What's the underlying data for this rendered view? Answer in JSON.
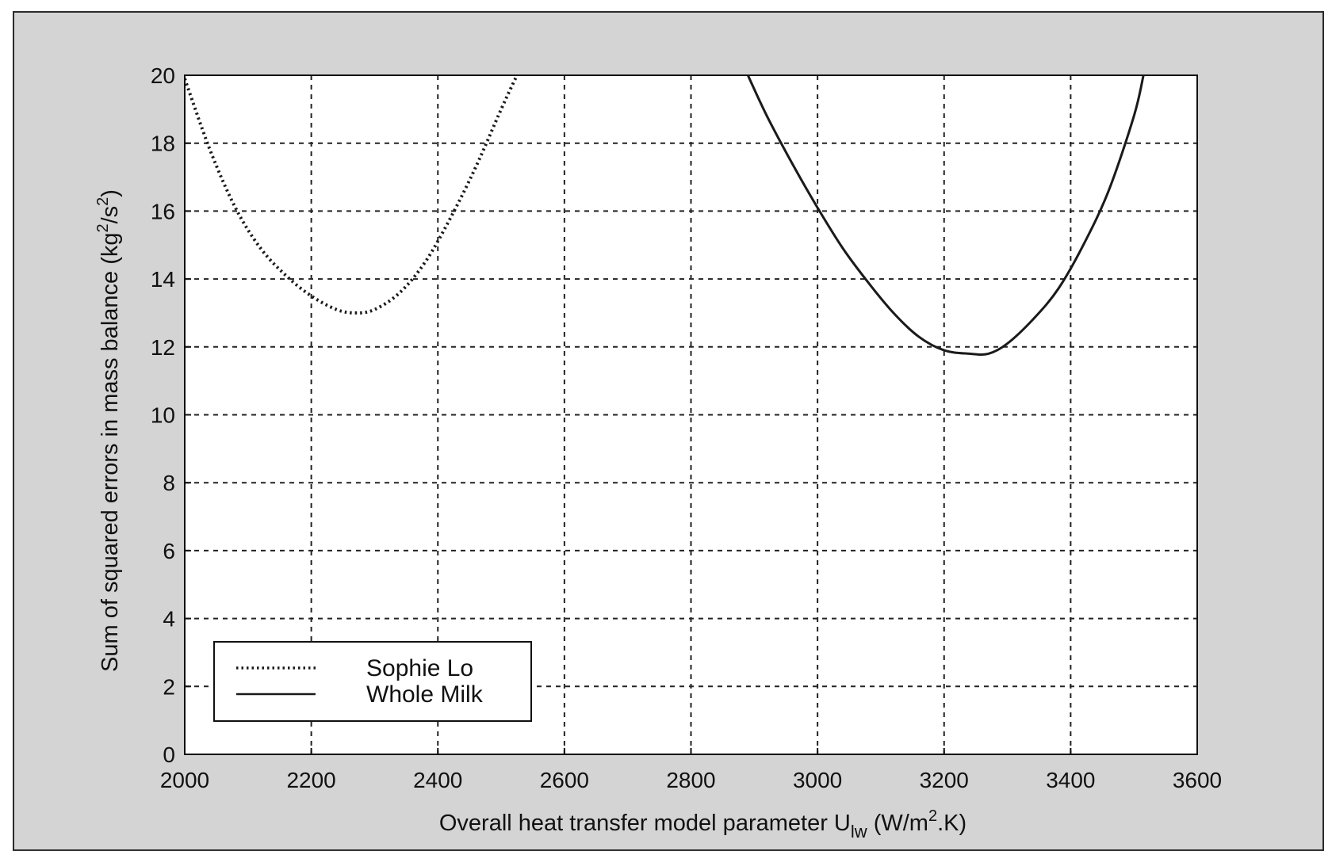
{
  "chart_data": {
    "type": "line",
    "title": "",
    "xlabel": {
      "main": "Overall heat transfer model parameter U",
      "subscript": "lw",
      "unit_pre": " (W/m",
      "unit_sup": "2",
      "unit_post": ".K)"
    },
    "ylabel": {
      "main": "Sum of squared errors in mass balance (kg",
      "sup1": "2",
      "mid": "/s",
      "sup2": "2",
      "post": ")"
    },
    "xlim": [
      2000,
      3600
    ],
    "ylim": [
      0,
      20
    ],
    "xticks": [
      2000,
      2200,
      2400,
      2600,
      2800,
      3000,
      3200,
      3400,
      3600
    ],
    "yticks": [
      0,
      2,
      4,
      6,
      8,
      10,
      12,
      14,
      16,
      18,
      20
    ],
    "grid": true,
    "legend_position": "bottom-left",
    "series": [
      {
        "name": "Sophie Lo",
        "style": "dotted",
        "color": "#1a1a1a",
        "points": [
          [
            2000,
            19.9
          ],
          [
            2040,
            17.8
          ],
          [
            2080,
            16.1
          ],
          [
            2120,
            14.9
          ],
          [
            2160,
            14.1
          ],
          [
            2200,
            13.5
          ],
          [
            2240,
            13.1
          ],
          [
            2270,
            13.0
          ],
          [
            2300,
            13.1
          ],
          [
            2340,
            13.6
          ],
          [
            2380,
            14.5
          ],
          [
            2420,
            15.8
          ],
          [
            2460,
            17.3
          ],
          [
            2500,
            19.0
          ],
          [
            2525,
            20.0
          ]
        ]
      },
      {
        "name": "Whole Milk",
        "style": "solid",
        "color": "#1a1a1a",
        "points": [
          [
            2890,
            20.0
          ],
          [
            2920,
            18.8
          ],
          [
            2960,
            17.4
          ],
          [
            3000,
            16.1
          ],
          [
            3040,
            14.9
          ],
          [
            3080,
            13.9
          ],
          [
            3120,
            13.0
          ],
          [
            3160,
            12.3
          ],
          [
            3200,
            11.9
          ],
          [
            3240,
            11.8
          ],
          [
            3270,
            11.8
          ],
          [
            3300,
            12.1
          ],
          [
            3340,
            12.8
          ],
          [
            3380,
            13.7
          ],
          [
            3420,
            15.0
          ],
          [
            3460,
            16.6
          ],
          [
            3500,
            18.8
          ],
          [
            3515,
            20.0
          ]
        ]
      }
    ]
  }
}
